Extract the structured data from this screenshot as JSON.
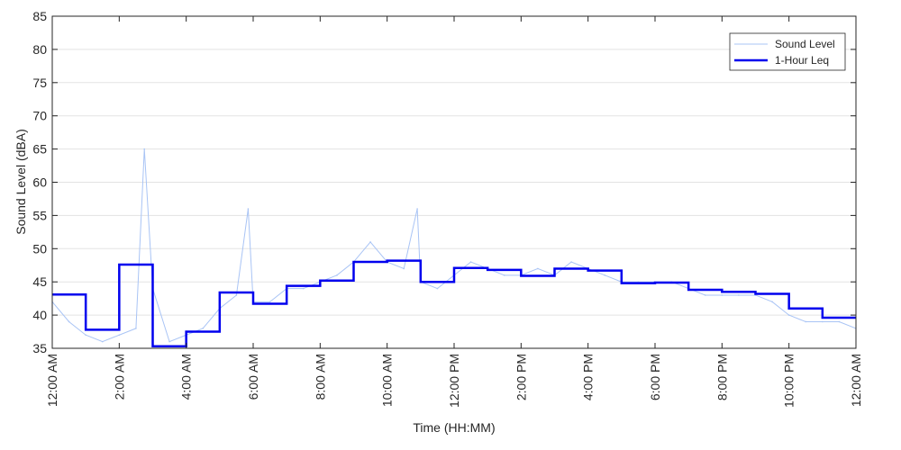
{
  "chart_data": {
    "type": "line",
    "xlabel": "Time (HH:MM)",
    "ylabel": "Sound Level (dBA)",
    "xlim": [
      0,
      24
    ],
    "ylim": [
      35,
      85
    ],
    "grid": "y-major",
    "legend_position": "top-right",
    "x_ticks": [
      0,
      2,
      4,
      6,
      8,
      10,
      12,
      14,
      16,
      18,
      20,
      22,
      24
    ],
    "x_tick_labels": [
      "12:00 AM",
      "2:00 AM",
      "4:00 AM",
      "6:00 AM",
      "8:00 AM",
      "10:00 AM",
      "12:00 PM",
      "2:00 PM",
      "4:00 PM",
      "6:00 PM",
      "8:00 PM",
      "10:00 PM",
      "12:00 AM"
    ],
    "y_ticks": [
      35,
      40,
      45,
      50,
      55,
      60,
      65,
      70,
      75,
      80,
      85
    ],
    "y_tick_labels": [
      "35",
      "40",
      "45",
      "50",
      "55",
      "60",
      "65",
      "70",
      "75",
      "80",
      "85"
    ],
    "series": [
      {
        "name": "Sound Level",
        "style": "thin-line",
        "color": "#a9c4f5",
        "x": [
          0,
          0.5,
          1,
          1.5,
          2,
          2.5,
          2.75,
          3,
          3.5,
          4,
          4.5,
          5,
          5.5,
          5.85,
          6,
          6.5,
          7,
          7.5,
          8,
          8.5,
          9,
          9.5,
          10,
          10.5,
          10.9,
          11,
          11.5,
          12,
          12.5,
          13,
          13.5,
          14,
          14.5,
          15,
          15.5,
          16,
          16.5,
          17,
          17.5,
          18,
          18.5,
          19,
          19.5,
          20,
          20.5,
          21,
          21.5,
          22,
          22.5,
          23,
          23.5,
          24
        ],
        "values": [
          42,
          39,
          37,
          36,
          37,
          38,
          65,
          44,
          36,
          37,
          38,
          41,
          43,
          56,
          42,
          42,
          44,
          44,
          45,
          46,
          48,
          51,
          48,
          47,
          56,
          45,
          44,
          46,
          48,
          47,
          46,
          46,
          47,
          46,
          48,
          47,
          46,
          45,
          45,
          45,
          45,
          44,
          43,
          43,
          43,
          43,
          42,
          40,
          39,
          39,
          39,
          38
        ]
      },
      {
        "name": "1-Hour Leq",
        "style": "step",
        "color": "#0000ee",
        "x": [
          0,
          1,
          2,
          3,
          4,
          5,
          6,
          7,
          8,
          9,
          10,
          11,
          12,
          13,
          14,
          15,
          16,
          17,
          18,
          19,
          20,
          21,
          22,
          23,
          24
        ],
        "values": [
          43.1,
          37.8,
          47.6,
          35.3,
          37.5,
          43.4,
          41.7,
          44.4,
          45.2,
          48.0,
          48.2,
          45.0,
          47.1,
          46.8,
          45.9,
          47.0,
          46.7,
          44.8,
          44.9,
          43.8,
          43.5,
          43.2,
          41.0,
          39.6,
          39.6
        ]
      }
    ]
  }
}
